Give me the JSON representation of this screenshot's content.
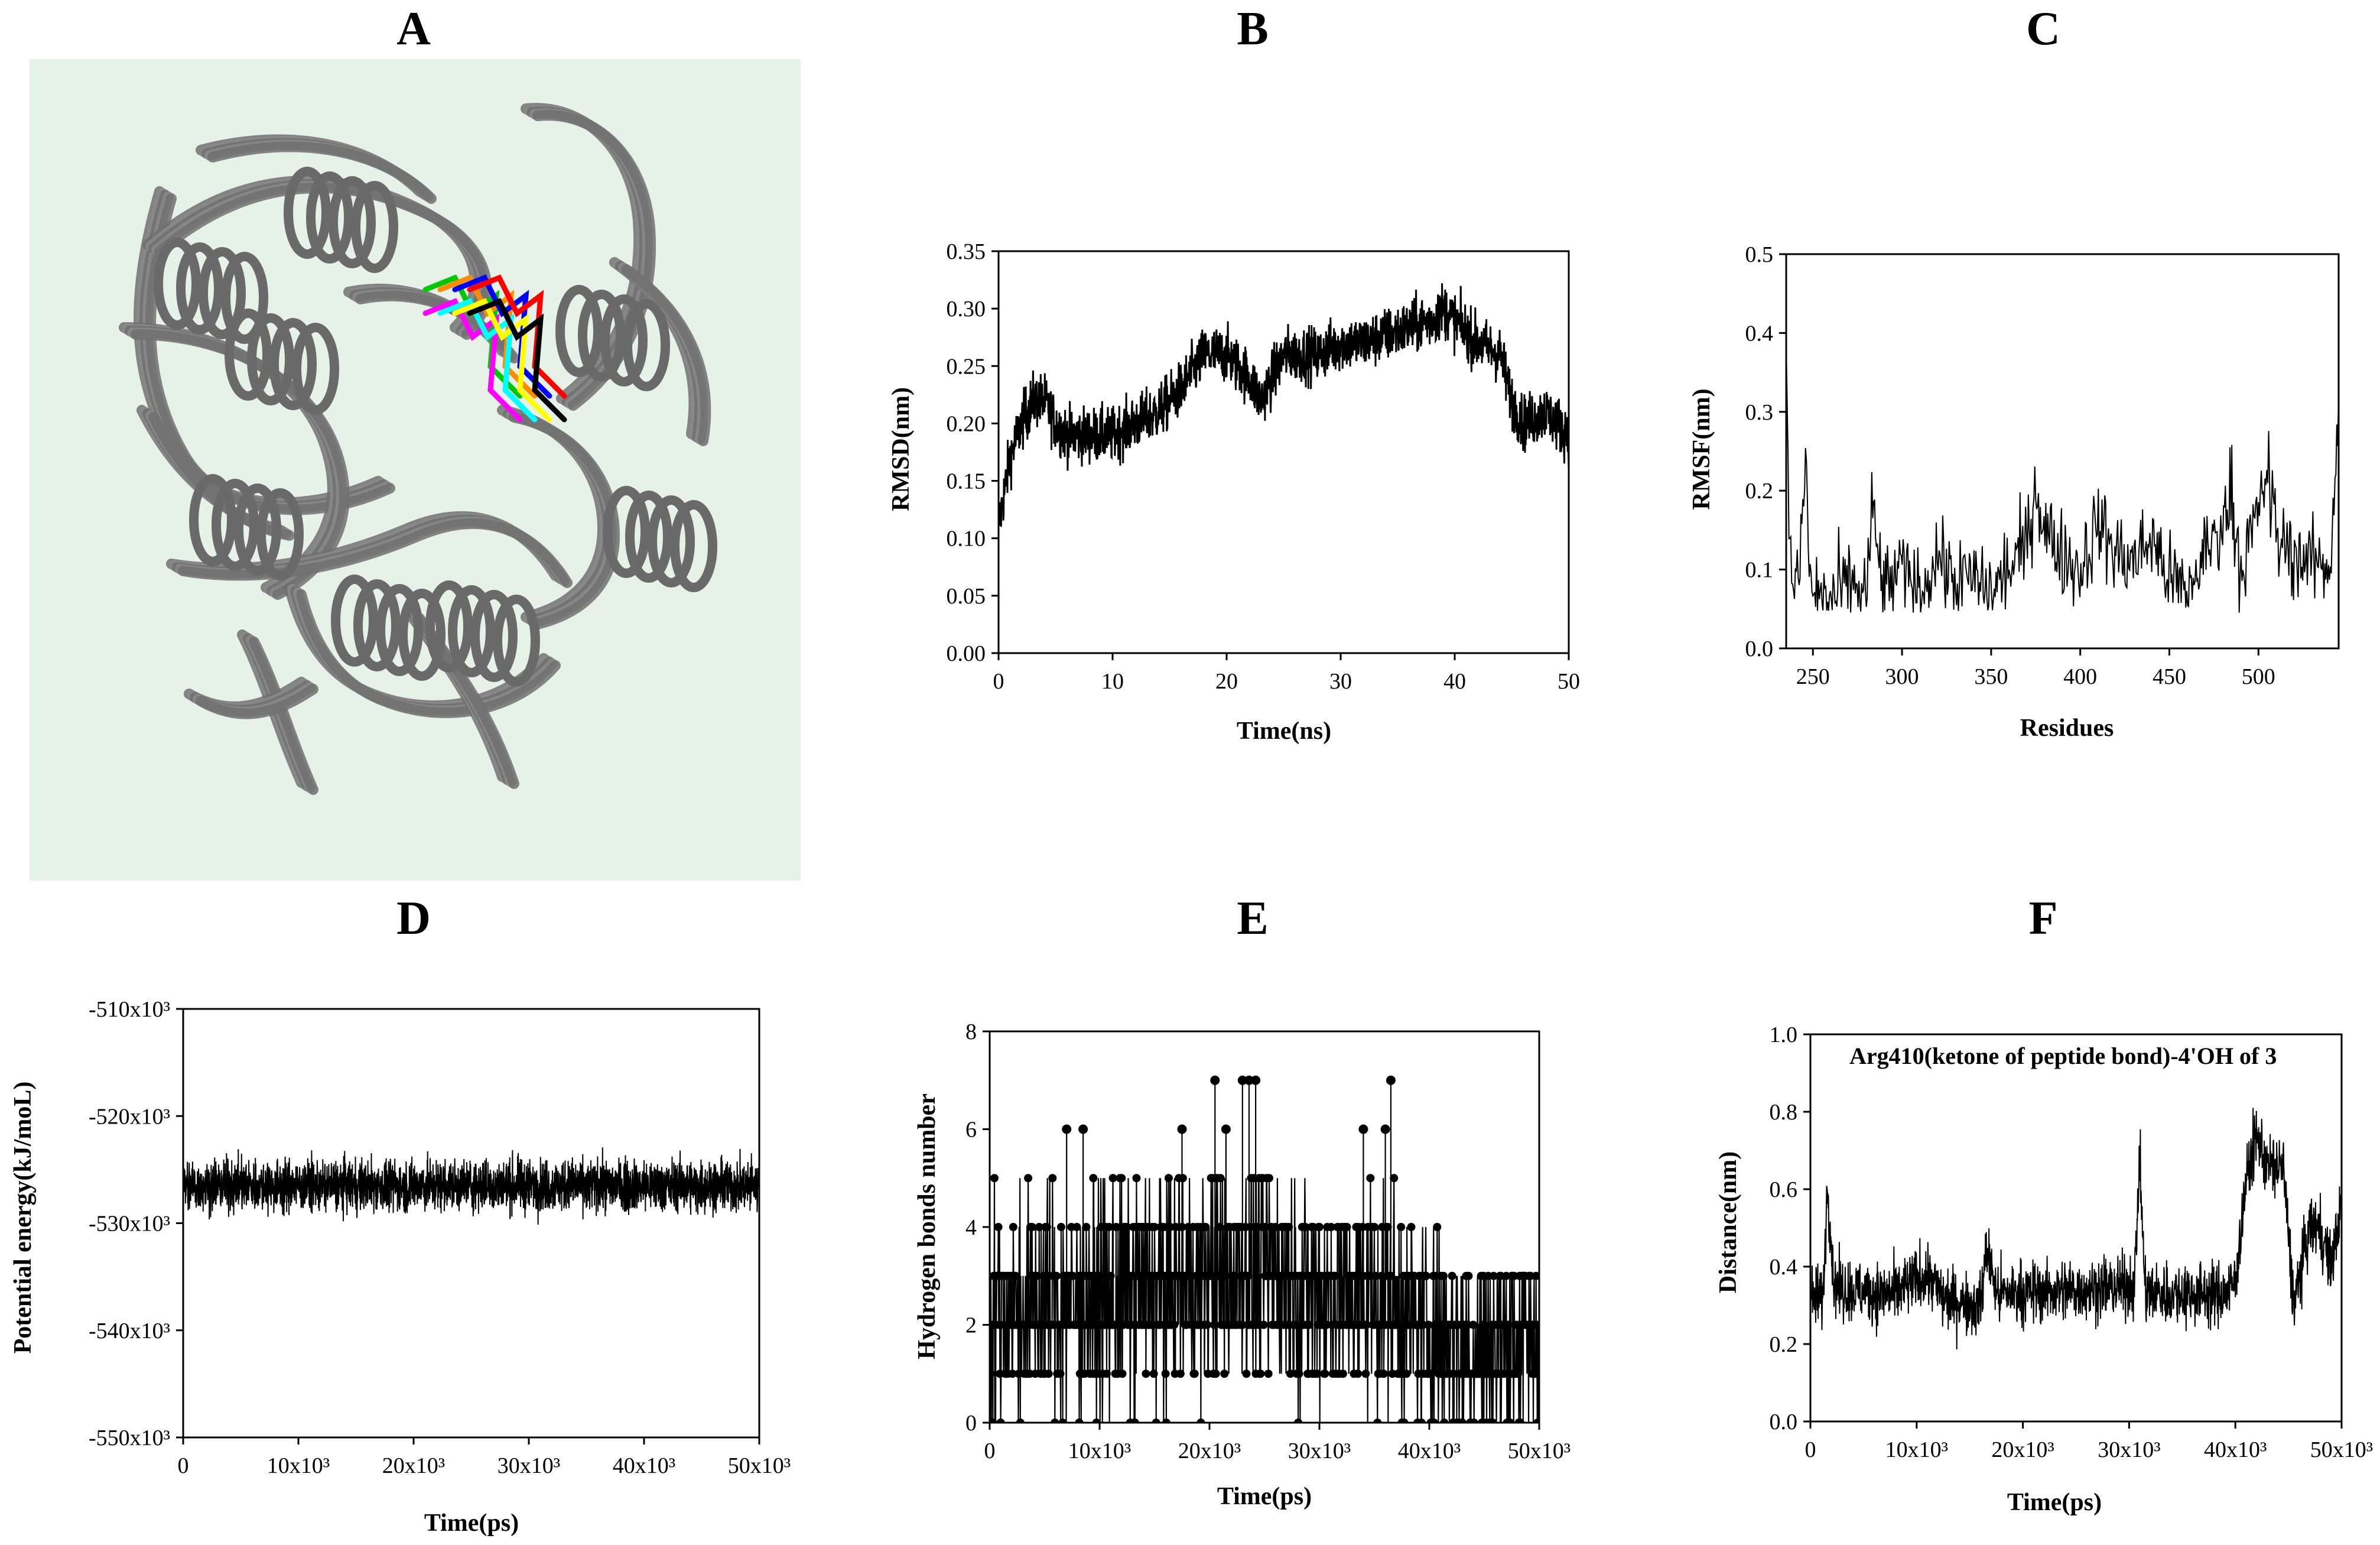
{
  "figure": {
    "panel_letters": [
      "A",
      "B",
      "C",
      "D",
      "E",
      "F"
    ]
  },
  "panel_a": {
    "background_color": "#e6f1e7",
    "protein_color": "#707070",
    "ligand_colors": [
      "#00c800",
      "#ff8c00",
      "#0000ff",
      "#ff0000",
      "#ff00ff",
      "#00ffff",
      "#ffff00",
      "#000000"
    ]
  },
  "chart_data": [
    {
      "panel": "B",
      "type": "line",
      "xlabel": "Time(ns)",
      "ylabel": "RMSD(nm)",
      "xlim": [
        0,
        50
      ],
      "ylim": [
        0,
        0.35
      ],
      "xticks": [
        0,
        10,
        20,
        30,
        40,
        50
      ],
      "xtick_labels": [
        "0",
        "10",
        "20",
        "30",
        "40",
        "50"
      ],
      "yticks": [
        0,
        0.05,
        0.1,
        0.15,
        0.2,
        0.25,
        0.3,
        0.35
      ],
      "ytick_labels": [
        "0.00",
        "0.05",
        "0.10",
        "0.15",
        "0.20",
        "0.25",
        "0.30",
        "0.35"
      ],
      "x": [
        0,
        1,
        2,
        3,
        4,
        5,
        6,
        8,
        10,
        12,
        14,
        16,
        18,
        20,
        22,
        23,
        25,
        28,
        30,
        32,
        35,
        38,
        39,
        40,
        42,
        44,
        45,
        46,
        48,
        50
      ],
      "y": [
        0.11,
        0.17,
        0.2,
        0.22,
        0.22,
        0.2,
        0.19,
        0.19,
        0.19,
        0.2,
        0.21,
        0.23,
        0.26,
        0.26,
        0.24,
        0.22,
        0.26,
        0.26,
        0.27,
        0.27,
        0.28,
        0.29,
        0.3,
        0.29,
        0.27,
        0.26,
        0.22,
        0.2,
        0.21,
        0.19
      ],
      "noise": 0.012
    },
    {
      "panel": "C",
      "type": "line",
      "xlabel": "Residues",
      "ylabel": "RMSF(nm)",
      "xlim": [
        235,
        545
      ],
      "ylim": [
        0,
        0.5
      ],
      "xticks": [
        250,
        300,
        350,
        400,
        450,
        500
      ],
      "xtick_labels": [
        "250",
        "300",
        "350",
        "400",
        "450",
        "500"
      ],
      "yticks": [
        0,
        0.1,
        0.2,
        0.3,
        0.4,
        0.5
      ],
      "ytick_labels": [
        "0.0",
        "0.1",
        "0.2",
        "0.3",
        "0.4",
        "0.5"
      ],
      "x": [
        235,
        237,
        240,
        243,
        246,
        248,
        252,
        260,
        270,
        280,
        283,
        290,
        300,
        310,
        320,
        330,
        340,
        350,
        360,
        370,
        375,
        380,
        390,
        400,
        410,
        420,
        430,
        440,
        450,
        460,
        470,
        480,
        485,
        490,
        500,
        505,
        510,
        520,
        530,
        540,
        545
      ],
      "y": [
        0.34,
        0.12,
        0.08,
        0.1,
        0.26,
        0.08,
        0.07,
        0.06,
        0.08,
        0.07,
        0.17,
        0.07,
        0.1,
        0.07,
        0.12,
        0.08,
        0.09,
        0.07,
        0.1,
        0.13,
        0.21,
        0.15,
        0.12,
        0.1,
        0.16,
        0.12,
        0.11,
        0.14,
        0.09,
        0.07,
        0.12,
        0.16,
        0.2,
        0.1,
        0.17,
        0.23,
        0.14,
        0.12,
        0.11,
        0.1,
        0.31
      ],
      "noise": 0.028
    },
    {
      "panel": "D",
      "type": "line",
      "xlabel": "Time(ps)",
      "ylabel": "Potential energy(kJ/moL)",
      "xlim": [
        0,
        50000
      ],
      "ylim": [
        -550000,
        -510000
      ],
      "xticks": [
        0,
        10000,
        20000,
        30000,
        40000,
        50000
      ],
      "xtick_labels": [
        "0",
        "10x10³",
        "20x10³",
        "30x10³",
        "40x10³",
        "50x10³"
      ],
      "yticks": [
        -550000,
        -540000,
        -530000,
        -520000,
        -510000
      ],
      "ytick_labels": [
        "-550x10³",
        "-540x10³",
        "-530x10³",
        "-520x10³",
        "-510x10³"
      ],
      "x": [
        0,
        50000
      ],
      "y": [
        -526500,
        -526500
      ],
      "noise": 1200
    },
    {
      "panel": "E",
      "type": "line",
      "xlabel": "Time(ps)",
      "ylabel": "Hydrogen bonds number",
      "xlim": [
        0,
        50000
      ],
      "ylim": [
        0,
        8
      ],
      "xticks": [
        0,
        10000,
        20000,
        30000,
        40000,
        50000
      ],
      "xtick_labels": [
        "0",
        "10x10³",
        "20x10³",
        "30x10³",
        "40x10³",
        "50x10³"
      ],
      "yticks": [
        0,
        2,
        4,
        6,
        8
      ],
      "ytick_labels": [
        "0",
        "2",
        "4",
        "6",
        "8"
      ],
      "x": [
        0,
        8000,
        17000,
        25000,
        30000,
        36000,
        40000,
        44000,
        50000
      ],
      "y": [
        2.2,
        2.5,
        2.8,
        3.2,
        2.6,
        2.6,
        1.9,
        1.6,
        1.6
      ],
      "peaks": [
        {
          "x": 7000,
          "y": 6
        },
        {
          "x": 8500,
          "y": 6
        },
        {
          "x": 17500,
          "y": 6
        },
        {
          "x": 20500,
          "y": 7
        },
        {
          "x": 21500,
          "y": 6
        },
        {
          "x": 23000,
          "y": 7
        },
        {
          "x": 23600,
          "y": 7
        },
        {
          "x": 24200,
          "y": 7
        },
        {
          "x": 34000,
          "y": 6
        },
        {
          "x": 36000,
          "y": 6
        },
        {
          "x": 36500,
          "y": 7
        }
      ],
      "markers": true
    },
    {
      "panel": "F",
      "type": "line",
      "xlabel": "Time(ps)",
      "ylabel": "Distance(nm)",
      "annotation": "Arg410(ketone of peptide bond)-4'OH of 3",
      "xlim": [
        0,
        50000
      ],
      "ylim": [
        0,
        1.0
      ],
      "xticks": [
        0,
        10000,
        20000,
        30000,
        40000,
        50000
      ],
      "xtick_labels": [
        "0",
        "10x10³",
        "20x10³",
        "30x10³",
        "40x10³",
        "50x10³"
      ],
      "yticks": [
        0,
        0.2,
        0.4,
        0.6,
        0.8,
        1.0
      ],
      "ytick_labels": [
        "0.0",
        "0.2",
        "0.4",
        "0.6",
        "0.8",
        "1.0"
      ],
      "x": [
        0,
        1200,
        1600,
        2200,
        3000,
        8000,
        11000,
        12500,
        16000,
        16600,
        17500,
        25000,
        30500,
        31000,
        31500,
        35000,
        39000,
        40000,
        41000,
        42000,
        43000,
        44500,
        45500,
        47000,
        48000,
        49000,
        50000
      ],
      "y": [
        0.32,
        0.32,
        0.62,
        0.36,
        0.34,
        0.33,
        0.38,
        0.32,
        0.3,
        0.45,
        0.33,
        0.34,
        0.35,
        0.68,
        0.33,
        0.33,
        0.33,
        0.36,
        0.62,
        0.74,
        0.66,
        0.66,
        0.3,
        0.5,
        0.5,
        0.4,
        0.56
      ],
      "noise": 0.04
    }
  ]
}
